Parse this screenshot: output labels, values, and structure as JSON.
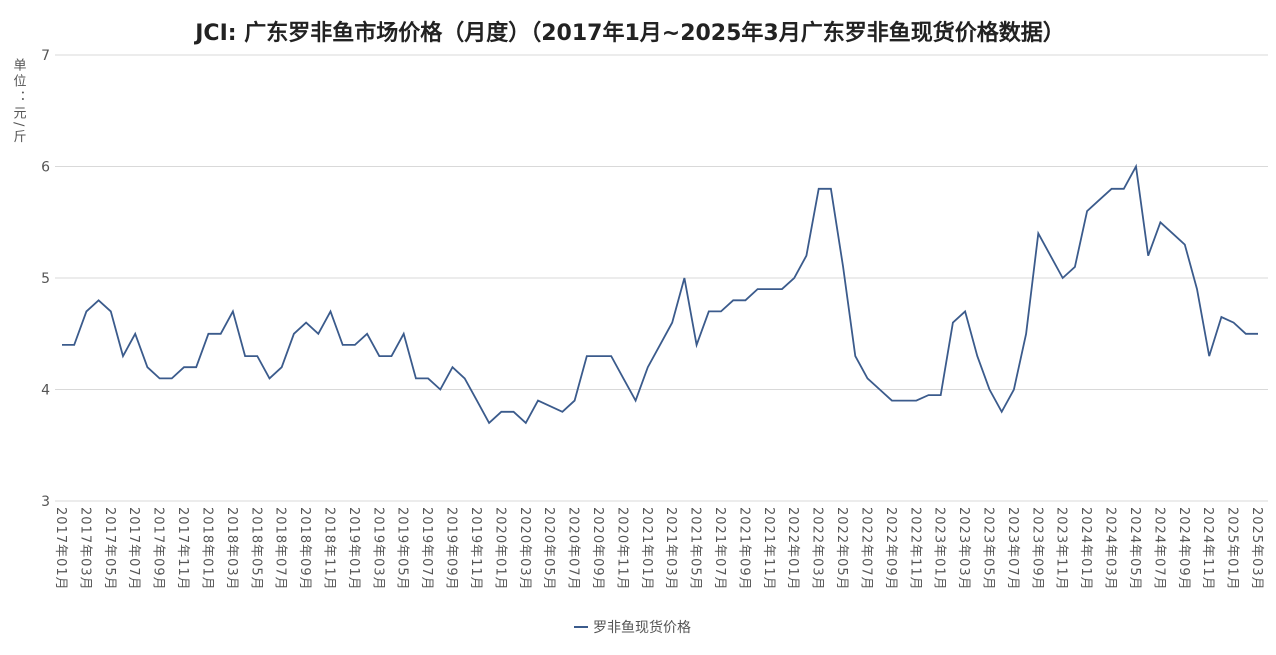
{
  "chart_data": {
    "type": "line",
    "title": "JCI: 广东罗非鱼市场价格（月度）（2017年1月~2025年3月广东罗非鱼现货价格数据）",
    "y_label": "单位：元/斤",
    "categories": [
      "2017年01月",
      null,
      "2017年03月",
      null,
      "2017年05月",
      null,
      "2017年07月",
      null,
      "2017年09月",
      null,
      "2017年11月",
      null,
      "2018年01月",
      null,
      "2018年03月",
      null,
      "2018年05月",
      null,
      "2018年07月",
      null,
      "2018年09月",
      null,
      "2018年11月",
      null,
      "2019年01月",
      null,
      "2019年03月",
      null,
      "2019年05月",
      null,
      "2019年07月",
      null,
      "2019年09月",
      null,
      "2019年11月",
      null,
      "2020年01月",
      null,
      "2020年03月",
      null,
      "2020年05月",
      null,
      "2020年07月",
      null,
      "2020年09月",
      null,
      "2020年11月",
      null,
      "2021年01月",
      null,
      "2021年03月",
      null,
      "2021年05月",
      null,
      "2021年07月",
      null,
      "2021年09月",
      null,
      "2021年11月",
      null,
      "2022年01月",
      null,
      "2022年03月",
      null,
      "2022年05月",
      null,
      "2022年07月",
      null,
      "2022年09月",
      null,
      "2022年11月",
      null,
      "2023年01月",
      null,
      "2023年03月",
      null,
      "2023年05月",
      null,
      "2023年07月",
      null,
      "2023年09月",
      null,
      "2023年11月",
      null,
      "2024年01月",
      null,
      "2024年03月",
      null,
      "2024年05月",
      null,
      "2024年07月",
      null,
      "2024年09月",
      null,
      "2024年11月",
      null,
      "2025年01月",
      null,
      "2025年03月"
    ],
    "series": [
      {
        "name": "罗非鱼现货价格",
        "color": "#3b5b8c",
        "values": [
          4.4,
          4.4,
          4.7,
          4.8,
          4.7,
          4.3,
          4.5,
          4.2,
          4.1,
          4.1,
          4.2,
          4.2,
          4.5,
          4.5,
          4.7,
          4.3,
          4.3,
          4.1,
          4.2,
          4.5,
          4.6,
          4.5,
          4.7,
          4.4,
          4.4,
          4.5,
          4.3,
          4.3,
          4.5,
          4.1,
          4.1,
          4.0,
          4.2,
          4.1,
          3.9,
          3.7,
          3.8,
          3.8,
          3.7,
          3.9,
          3.85,
          3.8,
          3.9,
          4.3,
          4.3,
          4.3,
          4.1,
          3.9,
          4.2,
          4.4,
          4.6,
          5.0,
          4.4,
          4.7,
          4.7,
          4.8,
          4.8,
          4.9,
          4.9,
          4.9,
          5.0,
          5.2,
          5.8,
          5.8,
          5.1,
          4.3,
          4.1,
          4.0,
          3.9,
          3.9,
          3.9,
          3.95,
          3.95,
          4.6,
          4.7,
          4.3,
          4.0,
          3.8,
          4.0,
          4.5,
          5.4,
          5.2,
          5.0,
          5.1,
          5.6,
          5.7,
          5.8,
          5.8,
          6.0,
          5.2,
          5.5,
          5.4,
          5.3,
          4.9,
          4.3,
          4.65,
          4.6,
          4.5,
          4.5
        ]
      }
    ],
    "ylim": [
      3,
      7
    ],
    "yticks": [
      3,
      4,
      5,
      6,
      7
    ],
    "grid": true
  }
}
